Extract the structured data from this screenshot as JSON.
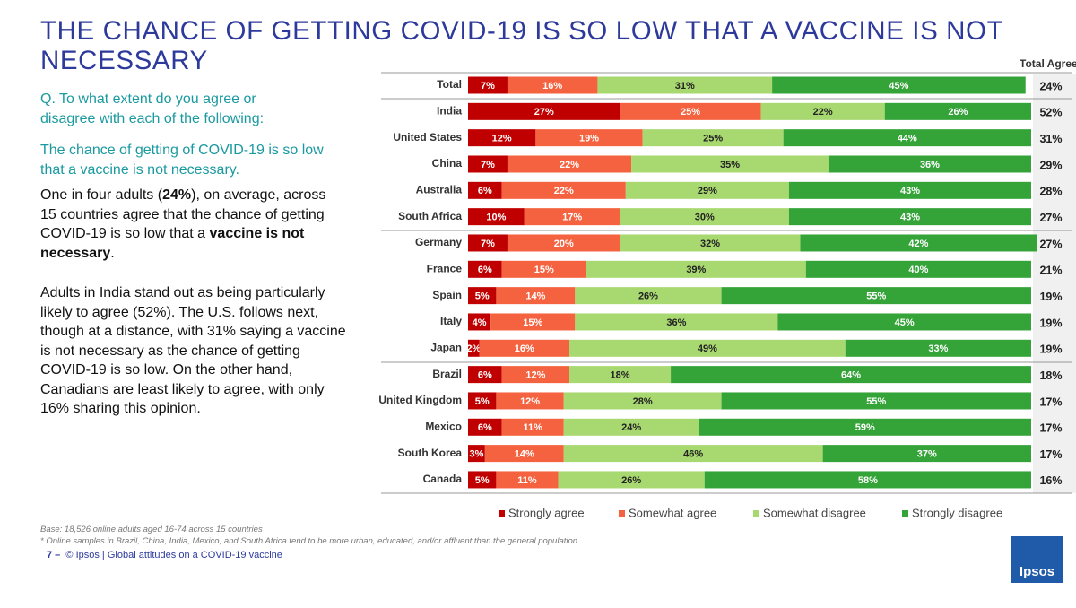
{
  "header": {
    "title": "THE CHANCE OF GETTING COVID-19 IS SO LOW THAT A VACCINE IS NOT NECESSARY"
  },
  "left_text": {
    "question": "Q. To what extent do you agree or disagree with each of the following:",
    "statement": "The chance of getting of COVID-19 is so low that a vaccine is not necessary.",
    "paragraph1": [
      "One in four adults (",
      "24%",
      "), on average, across 15 countries agree that the chance of getting COVID-19 is so low that a ",
      "vaccine is not necessary",
      "."
    ],
    "paragraph2": "Adults in India stand out as being particularly likely to agree (52%). The U.S. follows next, though at a distance, with 31% saying a vaccine is not necessary as the chance of getting COVID-19 is so low. On the other hand, Canadians are least likely to agree, with only 16% sharing this opinion."
  },
  "chart_data": {
    "type": "stacked-bar",
    "categories": [
      "Total",
      "India",
      "United States",
      "China",
      "Australia",
      "South Africa",
      "Germany",
      "France",
      "Spain",
      "Italy",
      "Japan",
      "Brazil",
      "United Kingdom",
      "Mexico",
      "South Korea",
      "Canada"
    ],
    "series": [
      {
        "name": "Strongly agree",
        "color": "#c00000",
        "values": [
          7,
          27,
          12,
          7,
          6,
          10,
          7,
          6,
          5,
          4,
          2,
          6,
          5,
          6,
          3,
          5
        ],
        "value_labels": [
          "7%",
          "27%",
          "12%",
          "7%",
          "6%",
          "10%",
          "7%",
          "6%",
          "5%",
          "4%",
          "2%",
          "6%",
          "5%",
          "6%",
          "3%",
          "5%"
        ]
      },
      {
        "name": "Somewhat agree",
        "color": "#f4623f",
        "values": [
          16,
          25,
          19,
          22,
          22,
          17,
          20,
          15,
          14,
          15,
          16,
          12,
          12,
          11,
          14,
          11
        ],
        "value_labels": [
          "16%",
          "25%",
          "19%",
          "22%",
          "22%",
          "17%",
          "20%",
          "15%",
          "14%",
          "15%",
          "16%",
          "12%",
          "12%",
          "11%",
          "14%",
          "11%"
        ]
      },
      {
        "name": "Somewhat disagree",
        "color": "#a8d870",
        "values": [
          31,
          22,
          25,
          35,
          29,
          30,
          32,
          39,
          26,
          36,
          49,
          18,
          28,
          24,
          46,
          26
        ],
        "value_labels": [
          "31%",
          "22%",
          "25%",
          "35%",
          "29%",
          "30%",
          "32%",
          "39%",
          "26%",
          "36%",
          "49%",
          "18%",
          "28%",
          "24%",
          "46%",
          "26%"
        ]
      },
      {
        "name": "Strongly disagree",
        "color": "#34a338",
        "values": [
          45,
          26,
          44,
          36,
          43,
          43,
          42,
          40,
          55,
          45,
          33,
          64,
          55,
          59,
          37,
          58
        ],
        "value_labels": [
          "45%",
          "26%",
          "44%",
          "36%",
          "43%",
          "43%",
          "42%",
          "40%",
          "55%",
          "45%",
          "33%",
          "64%",
          "55%",
          "59%",
          "37%",
          "58%"
        ]
      }
    ],
    "total_agree": {
      "title": "Total Agree",
      "values": [
        24,
        52,
        31,
        29,
        28,
        27,
        27,
        21,
        19,
        19,
        19,
        18,
        17,
        17,
        17,
        16
      ],
      "value_labels": [
        "24%",
        "52%",
        "31%",
        "29%",
        "28%",
        "27%",
        "27%",
        "21%",
        "19%",
        "19%",
        "19%",
        "18%",
        "17%",
        "17%",
        "17%",
        "16%"
      ]
    }
  },
  "footnotes": [
    "Base: 18,526 online adults aged 16-74 across 15 countries",
    "* Online samples in Brazil, China, India, Mexico, and South Africa tend to be more urban, educated, and/or affluent than the general population"
  ],
  "footer": {
    "page": "7 –",
    "text": "© Ipsos | Global attitudes on a COVID-19 vaccine"
  },
  "logo": "Ipsos"
}
